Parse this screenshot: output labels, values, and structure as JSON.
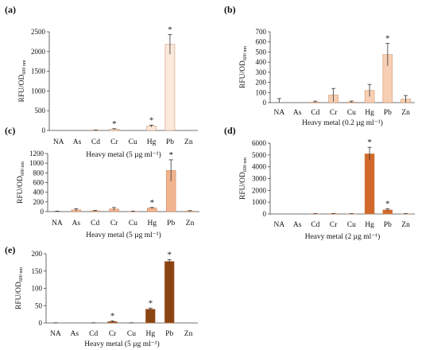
{
  "chart_data": [
    {
      "type": "bar",
      "panel": "(a)",
      "categories": [
        "NA",
        "As",
        "Cd",
        "Cr",
        "Cu",
        "Hg",
        "Pb",
        "Zn"
      ],
      "values": [
        0,
        0,
        8,
        35,
        0,
        110,
        2180,
        0
      ],
      "errors": [
        0,
        0,
        4,
        10,
        0,
        25,
        250,
        0
      ],
      "significant": [
        false,
        false,
        false,
        true,
        false,
        true,
        true,
        false
      ],
      "color": "#fbe9dc",
      "yticks": [
        0,
        500,
        1000,
        1500,
        2000,
        2500
      ],
      "ylim": [
        0,
        2500
      ],
      "ylabel": "RFU/OD",
      "ylabel_sub": "600 nm",
      "xlabel": "Heavy metal (5 µg ml⁻¹)"
    },
    {
      "type": "bar",
      "panel": "(b)",
      "categories": [
        "NA",
        "As",
        "Cd",
        "Cr",
        "Cu",
        "Hg",
        "Pb",
        "Zn"
      ],
      "values": [
        0,
        0,
        5,
        75,
        5,
        120,
        475,
        35
      ],
      "errors": [
        40,
        0,
        10,
        65,
        10,
        60,
        110,
        35
      ],
      "significant": [
        false,
        false,
        false,
        false,
        false,
        false,
        true,
        false
      ],
      "color": "#f7cfb4",
      "yticks": [
        0,
        100,
        200,
        300,
        400,
        500,
        600,
        700
      ],
      "ylim": [
        0,
        700
      ],
      "ylabel": "RFU/OD",
      "ylabel_sub": "600 nm",
      "xlabel": "Heavy metal (0.2 µg ml⁻¹)"
    },
    {
      "type": "bar",
      "panel": "(c)",
      "categories": [
        "NA",
        "As",
        "Cd",
        "Cr",
        "Cu",
        "Hg",
        "Pb",
        "Zn"
      ],
      "values": [
        0,
        35,
        15,
        55,
        5,
        75,
        850,
        10
      ],
      "errors": [
        10,
        25,
        10,
        30,
        5,
        10,
        220,
        10
      ],
      "significant": [
        false,
        false,
        false,
        false,
        false,
        true,
        true,
        false
      ],
      "color": "#f2b38f",
      "yticks": [
        0,
        200,
        400,
        600,
        800,
        1000,
        1200
      ],
      "ylim": [
        0,
        1200
      ],
      "ylabel": "RFU/OD",
      "ylabel_sub": "600 nm",
      "xlabel": "Heavy metal (5 µg ml⁻¹)"
    },
    {
      "type": "bar",
      "panel": "(d)",
      "categories": [
        "NA",
        "As",
        "Cd",
        "Cr",
        "Cu",
        "Hg",
        "Pb",
        "Zn"
      ],
      "values": [
        0,
        0,
        20,
        30,
        20,
        5100,
        350,
        20
      ],
      "errors": [
        0,
        0,
        10,
        10,
        10,
        550,
        100,
        10
      ],
      "significant": [
        false,
        false,
        false,
        false,
        false,
        true,
        true,
        false
      ],
      "color": "#d2692a",
      "yticks": [
        0,
        1000,
        2000,
        3000,
        4000,
        5000,
        6000
      ],
      "ylim": [
        0,
        6000
      ],
      "ylabel": "RFU/OD",
      "ylabel_sub": "600 nm",
      "xlabel": "Heavy metal (2 µg ml⁻¹)"
    },
    {
      "type": "bar",
      "panel": "(e)",
      "categories": [
        "NA",
        "As",
        "Cd",
        "Cr",
        "Cu",
        "Hg",
        "Pb",
        "Zn"
      ],
      "values": [
        0,
        0,
        0,
        4,
        0,
        40,
        178,
        0
      ],
      "errors": [
        0.5,
        0,
        0.5,
        2,
        0.5,
        3,
        5,
        0
      ],
      "significant": [
        false,
        false,
        false,
        true,
        false,
        true,
        true,
        false
      ],
      "color": "#8b4513",
      "yticks": [
        0,
        50,
        100,
        150,
        200
      ],
      "ylim": [
        0,
        200
      ],
      "ylabel": "RFU/OD",
      "ylabel_sub": "600 nm",
      "xlabel": "Heavy metal (5 µg ml⁻¹)"
    }
  ],
  "marker": "*"
}
